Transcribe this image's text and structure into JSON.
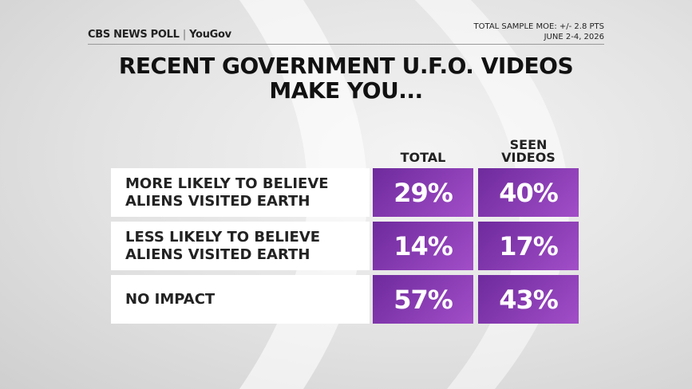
{
  "header": {
    "logo": "CBS NEWS POLL",
    "partner": "YouGov",
    "moe": "TOTAL SAMPLE MOE: +/- 2.8 PTS",
    "dates": "JUNE 2-4, 2026"
  },
  "title": [
    "RECENT GOVERNMENT U.F.O. VIDEOS",
    "MAKE YOU..."
  ],
  "table": {
    "columns": [
      [
        "TOTAL"
      ],
      [
        "SEEN",
        "VIDEOS"
      ]
    ],
    "rows": [
      {
        "label": [
          "MORE LIKELY TO BELIEVE",
          "ALIENS VISITED EARTH"
        ],
        "values": [
          "29%",
          "40%"
        ]
      },
      {
        "label": [
          "LESS LIKELY TO BELIEVE",
          "ALIENS VISITED EARTH"
        ],
        "values": [
          "14%",
          "17%"
        ]
      },
      {
        "label": [
          "NO IMPACT"
        ],
        "values": [
          "57%",
          "43%"
        ]
      }
    ]
  }
}
